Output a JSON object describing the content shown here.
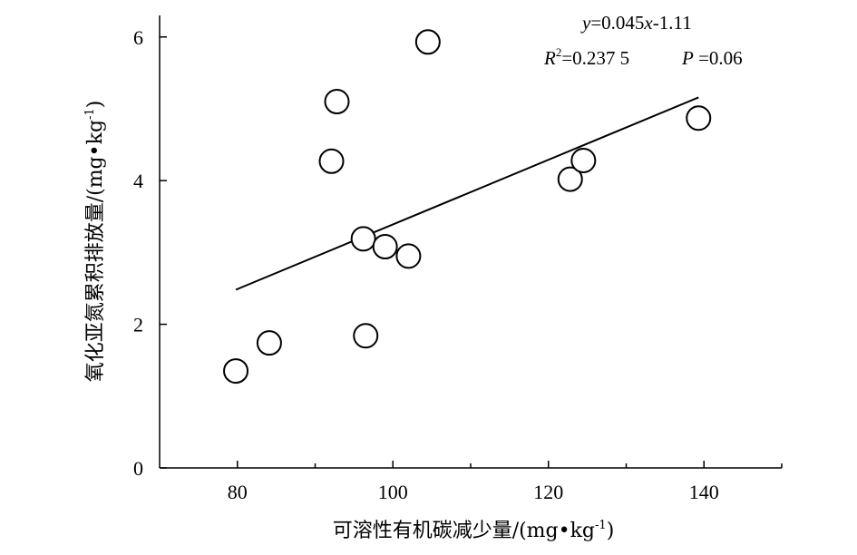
{
  "chart_data": {
    "type": "scatter",
    "xlabel": "可溶性有机碳减少量/(mg•kg",
    "xlabel_sup": "-1",
    "xlabel_end": ")",
    "ylabel": "氧化亚氮累积排放量/(mg•kg",
    "ylabel_sup": "-1",
    "ylabel_end": ")",
    "xlim": [
      70,
      150
    ],
    "ylim": [
      0,
      6.3
    ],
    "x_ticks": [
      80,
      100,
      120,
      140
    ],
    "y_ticks": [
      0,
      2,
      4,
      6
    ],
    "x_tick_labels": [
      "80",
      "100",
      "120",
      "140"
    ],
    "y_tick_labels": [
      "0",
      "2",
      "4",
      "6"
    ],
    "minor_x_ticks": [
      90,
      110,
      130,
      150
    ],
    "points": [
      {
        "x": 79.8,
        "y": 1.35
      },
      {
        "x": 84.1,
        "y": 1.74
      },
      {
        "x": 92.1,
        "y": 4.27
      },
      {
        "x": 92.8,
        "y": 5.1
      },
      {
        "x": 96.2,
        "y": 3.19
      },
      {
        "x": 96.5,
        "y": 1.84
      },
      {
        "x": 99.0,
        "y": 3.08
      },
      {
        "x": 102.0,
        "y": 2.95
      },
      {
        "x": 104.5,
        "y": 5.93
      },
      {
        "x": 122.8,
        "y": 4.02
      },
      {
        "x": 124.5,
        "y": 4.28
      },
      {
        "x": 139.3,
        "y": 4.87
      }
    ],
    "fit": {
      "slope": 0.045,
      "intercept": -1.11,
      "x_range": [
        79.8,
        139.3
      ]
    },
    "annotation": {
      "equation": {
        "y": "y",
        "eq": "=0.045",
        "x": "x",
        "rest": "-1.11"
      },
      "r2": {
        "R": "R",
        "sup": "2",
        "val": "=0.237 5"
      },
      "p": {
        "P": "P",
        "val": " =0.06"
      }
    }
  }
}
